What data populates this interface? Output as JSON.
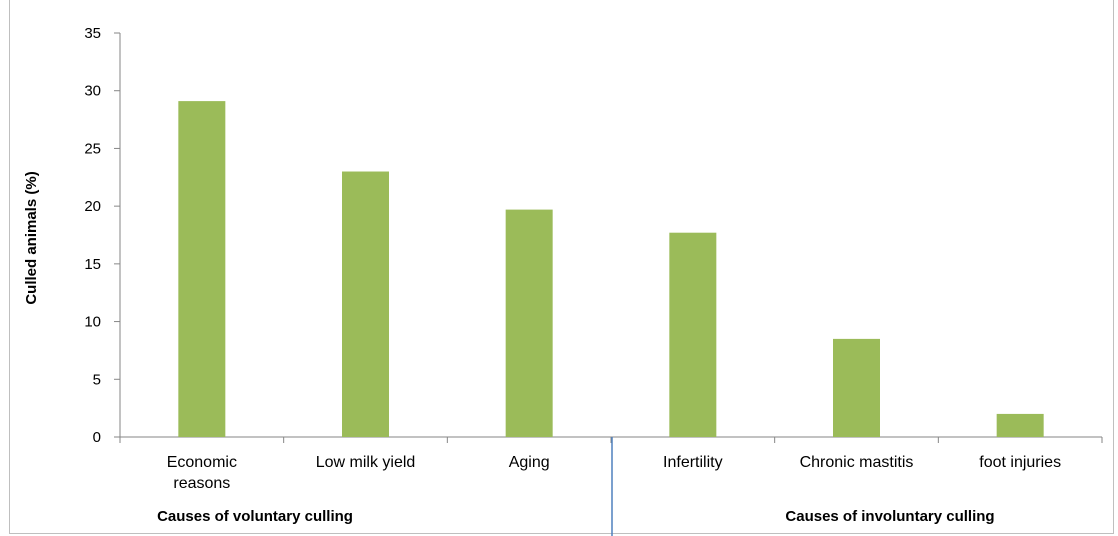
{
  "chart_data": {
    "type": "bar",
    "categories": [
      [
        "Economic",
        "reasons"
      ],
      [
        "Low milk yield"
      ],
      [
        "Aging"
      ],
      [
        "Infertility"
      ],
      [
        "Chronic mastitis"
      ],
      [
        "foot injuries"
      ]
    ],
    "values": [
      29.1,
      23.0,
      19.7,
      17.7,
      8.5,
      2.0
    ],
    "ylabel": "Culled animals (%)",
    "ylim": [
      0,
      35
    ],
    "yticks": [
      0,
      5,
      10,
      15,
      20,
      25,
      30,
      35
    ],
    "bar_color": "#9bbb59",
    "grid": false,
    "groups": [
      {
        "label": "Causes of voluntary culling",
        "categories": [
          0,
          1,
          2
        ]
      },
      {
        "label": "Causes of involuntary culling",
        "categories": [
          3,
          4,
          5
        ]
      }
    ],
    "divider_color": "#4f81bd"
  }
}
